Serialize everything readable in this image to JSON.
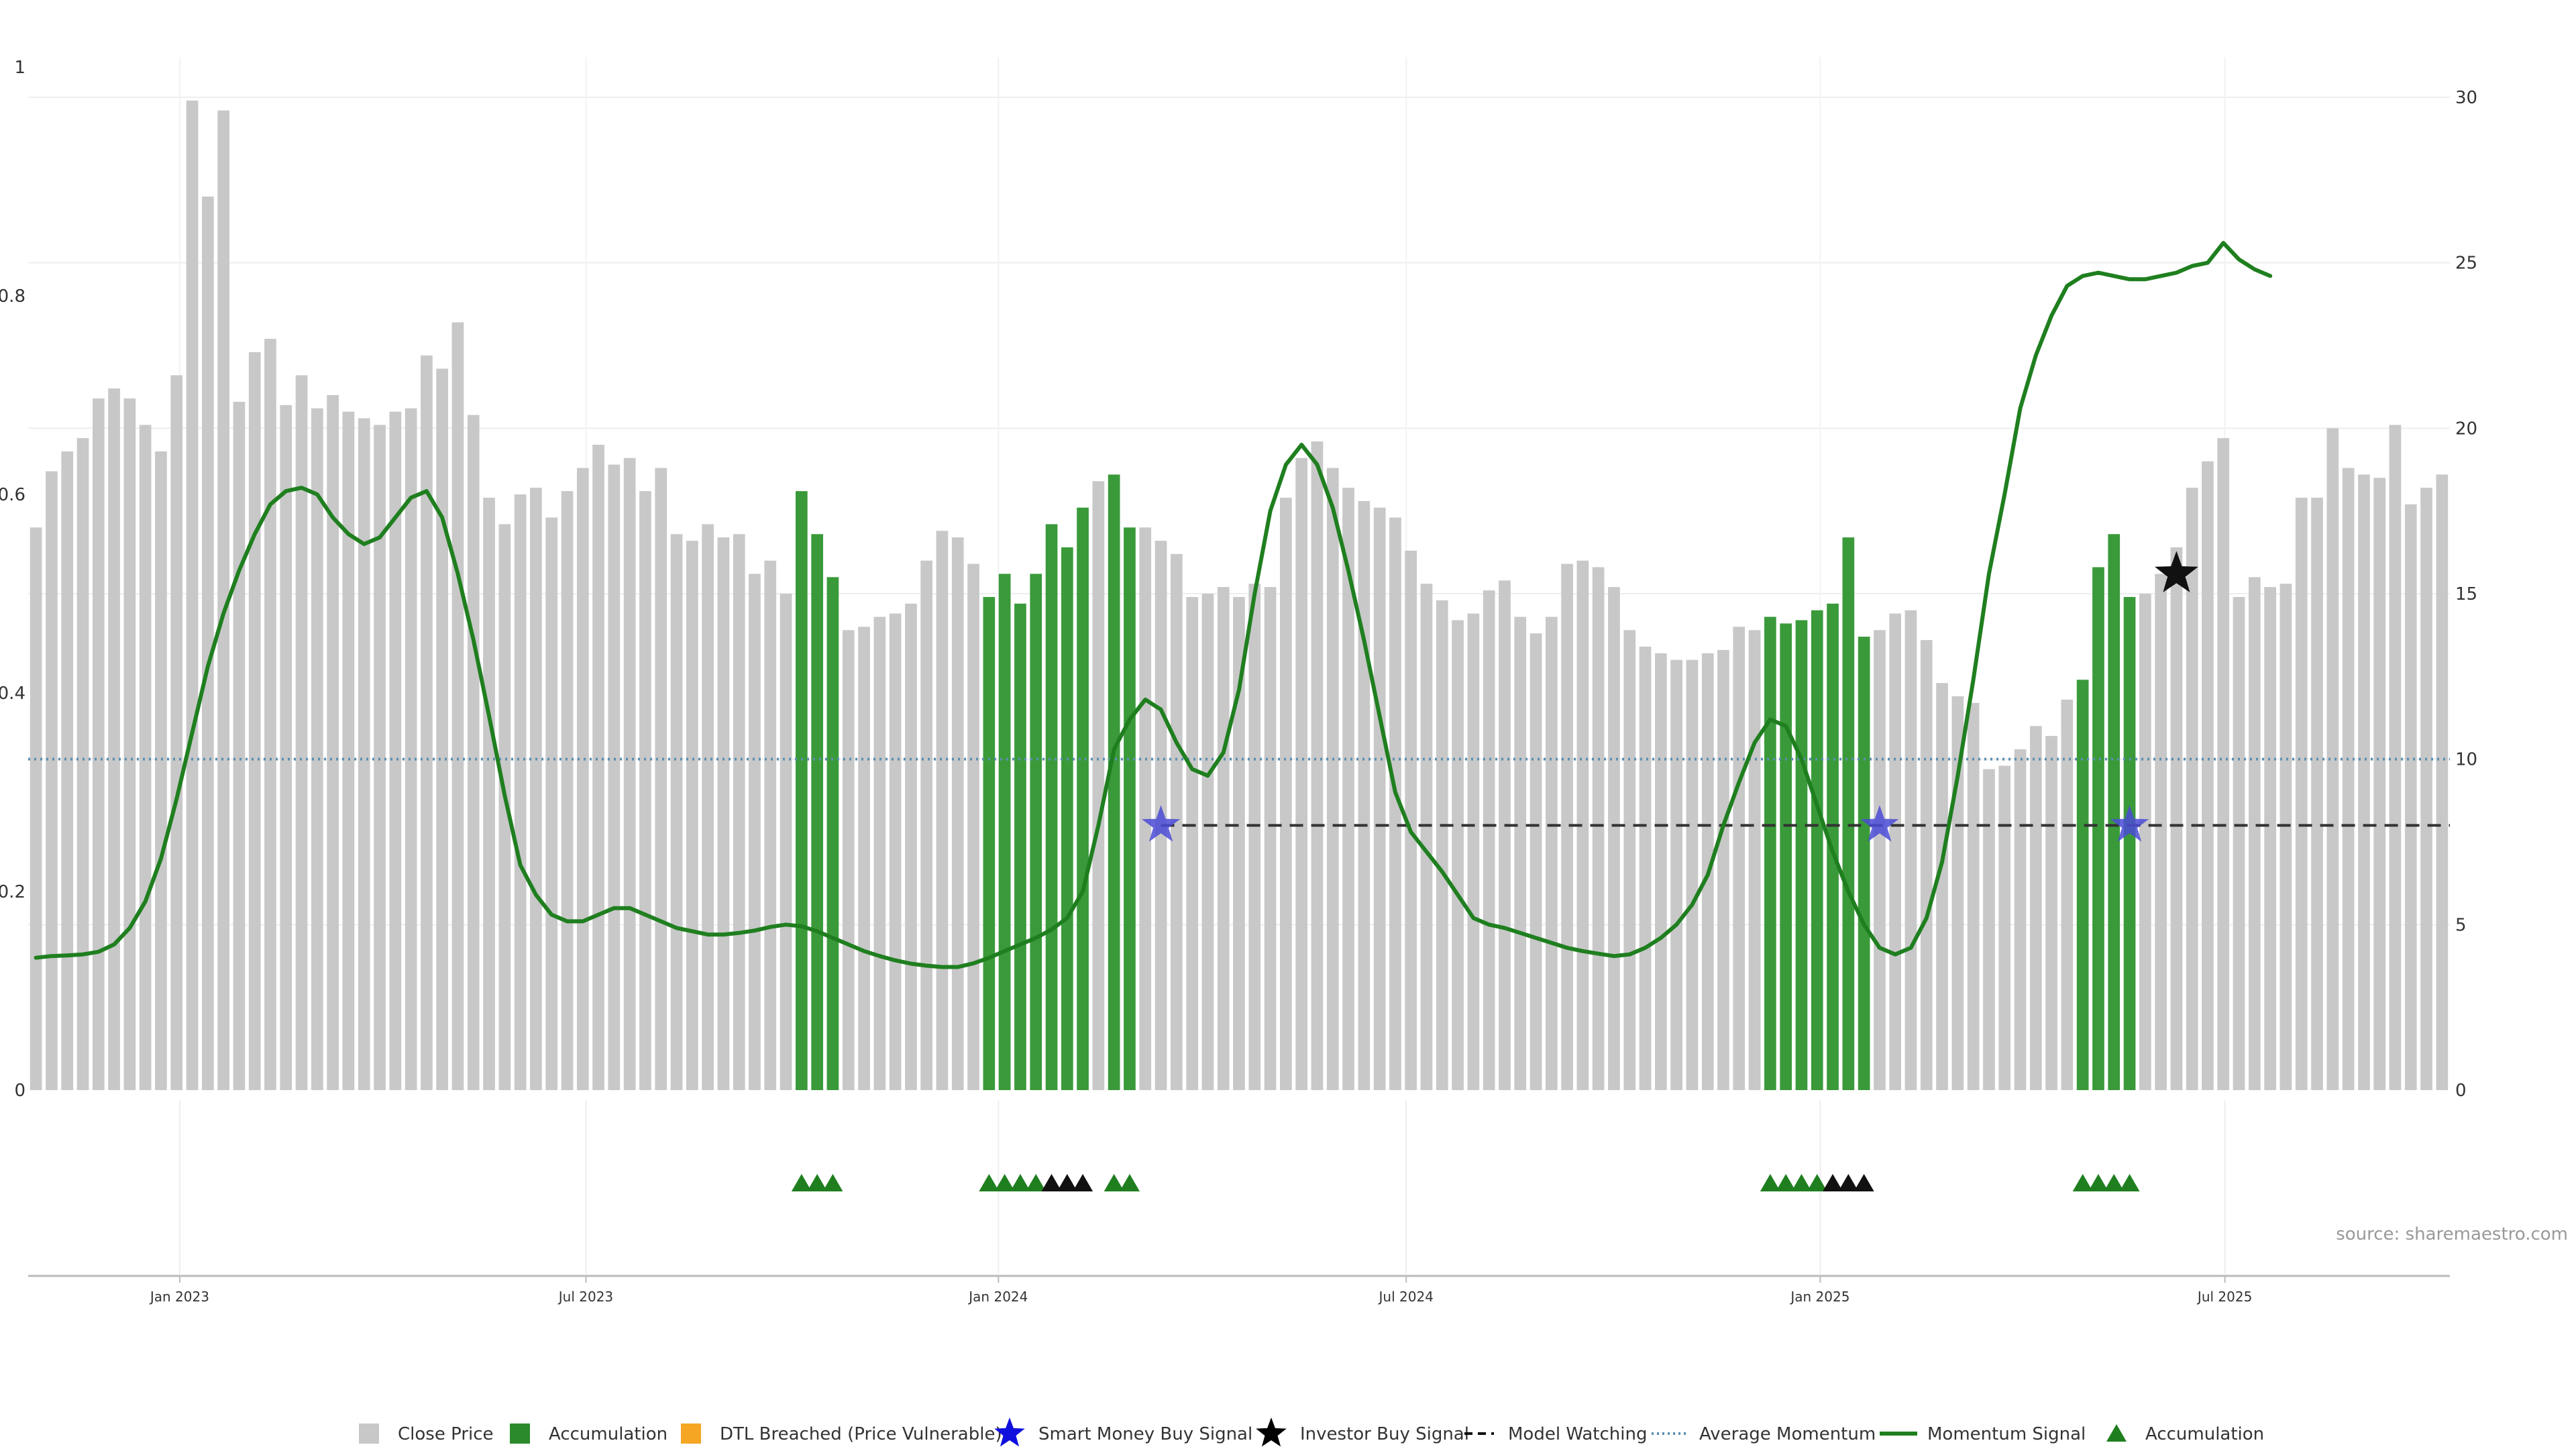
{
  "chart_data": {
    "type": "bar",
    "source": "source: sharemaestro.com",
    "x_ticks": [
      "Jan 2023",
      "Jul 2023",
      "Jan 2024",
      "Jul 2024",
      "Jan 2025",
      "Jul 2025"
    ],
    "y_left_ticks": [
      "0",
      "0.2",
      "0.4",
      "0.6",
      "0.8",
      "1"
    ],
    "y_right_ticks": [
      "0",
      "5",
      "10",
      "15",
      "20",
      "25",
      "30"
    ],
    "ylim_left": [
      0,
      1
    ],
    "ylim_right": [
      0,
      30
    ],
    "colors": {
      "close_price": "#c8c8c8",
      "accumulation": "#3a9a3a",
      "momentum": "#1f7f1f",
      "average_momentum": "#5b8fb0",
      "model_watching": "#333333",
      "smart_money_star": "#4b4bd6",
      "investor_star": "#111111"
    },
    "close_price": [
      17.0,
      18.7,
      19.3,
      19.7,
      20.9,
      21.2,
      20.9,
      20.1,
      19.3,
      21.6,
      29.9,
      27.0,
      29.6,
      20.8,
      22.3,
      22.7,
      20.7,
      21.6,
      20.6,
      21.0,
      20.5,
      20.3,
      20.1,
      20.5,
      20.6,
      22.2,
      21.8,
      23.2,
      20.4,
      17.9,
      17.1,
      18.0,
      18.2,
      17.3,
      18.1,
      18.8,
      19.5,
      18.9,
      19.1,
      18.1,
      18.8,
      16.8,
      16.6,
      17.1,
      16.7,
      16.8,
      15.6,
      16.0,
      15.0,
      18.1,
      16.8,
      15.5,
      13.9,
      14.0,
      14.3,
      14.4,
      14.7,
      16.0,
      16.9,
      16.7,
      15.9,
      14.9,
      15.6,
      14.7,
      15.6,
      17.1,
      16.4,
      17.6,
      18.4,
      18.6,
      17.0,
      17.0,
      16.6,
      16.2,
      14.9,
      15.0,
      15.2,
      14.9,
      15.3,
      15.2,
      17.9,
      19.1,
      19.6,
      18.8,
      18.2,
      17.8,
      17.6,
      17.3,
      16.3,
      15.3,
      14.8,
      14.2,
      14.4,
      15.1,
      15.4,
      14.3,
      13.8,
      14.3,
      15.9,
      16.0,
      15.8,
      15.2,
      13.9,
      13.4,
      13.2,
      13.0,
      13.0,
      13.2,
      13.3,
      14.0,
      13.9,
      14.3,
      14.1,
      14.2,
      14.5,
      14.7,
      16.7,
      13.7,
      13.9,
      14.4,
      14.5,
      13.6,
      12.3,
      11.9,
      11.7,
      9.7,
      9.8,
      10.3,
      11.0,
      10.7,
      11.8,
      12.4,
      15.8,
      16.8,
      14.9,
      15.0,
      15.6,
      16.4,
      18.2,
      19.0,
      19.7,
      14.9,
      15.5,
      15.2,
      15.3,
      17.9,
      17.9,
      20.0,
      18.8,
      18.6,
      18.5,
      20.1,
      17.7,
      18.2,
      18.6
    ],
    "accumulation_indices": [
      49,
      50,
      51,
      61,
      62,
      63,
      64,
      65,
      66,
      67,
      69,
      70,
      111,
      112,
      113,
      114,
      115,
      116,
      117,
      131,
      132,
      133,
      134
    ],
    "momentum": [
      4.0,
      4.05,
      4.07,
      4.1,
      4.18,
      4.4,
      4.9,
      5.7,
      7.0,
      8.8,
      10.8,
      12.8,
      14.4,
      15.7,
      16.8,
      17.7,
      18.1,
      18.2,
      18.0,
      17.3,
      16.8,
      16.5,
      16.7,
      17.3,
      17.9,
      18.1,
      17.3,
      15.6,
      13.6,
      11.3,
      8.9,
      6.8,
      5.9,
      5.3,
      5.1,
      5.1,
      5.3,
      5.5,
      5.5,
      5.3,
      5.1,
      4.9,
      4.8,
      4.7,
      4.7,
      4.75,
      4.82,
      4.93,
      5.0,
      4.95,
      4.8,
      4.6,
      4.4,
      4.2,
      4.05,
      3.92,
      3.82,
      3.76,
      3.72,
      3.72,
      3.83,
      4.0,
      4.2,
      4.4,
      4.6,
      4.85,
      5.2,
      6.0,
      8.0,
      10.3,
      11.2,
      11.8,
      11.5,
      10.5,
      9.7,
      9.5,
      10.2,
      12.1,
      15.0,
      17.5,
      18.9,
      19.5,
      18.9,
      17.6,
      15.7,
      13.6,
      11.3,
      9.0,
      7.8,
      7.2,
      6.6,
      5.9,
      5.2,
      5.0,
      4.9,
      4.75,
      4.6,
      4.45,
      4.3,
      4.2,
      4.12,
      4.05,
      4.1,
      4.3,
      4.6,
      5.0,
      5.6,
      6.5,
      8.0,
      9.3,
      10.5,
      11.2,
      11.0,
      10.0,
      8.6,
      7.2,
      6.0,
      5.0,
      4.3,
      4.1,
      4.3,
      5.2,
      6.9,
      9.5,
      12.4,
      15.6,
      18.0,
      20.6,
      22.2,
      23.4,
      24.3,
      24.6,
      24.7,
      24.6,
      24.5,
      24.5,
      24.6,
      24.7,
      24.9,
      25.0,
      25.6,
      25.1,
      24.8,
      24.6
    ],
    "average_momentum": 10.0,
    "model_watching": {
      "start_index": 72,
      "level": 8.0
    },
    "smart_money_buy_signals": [
      {
        "index": 72,
        "value": 8.0
      },
      {
        "index": 118,
        "value": 8.0
      },
      {
        "index": 134,
        "value": 8.0
      }
    ],
    "investor_buy_signals": [
      {
        "index": 137,
        "value": 15.6
      }
    ],
    "accumulation_markers": [
      {
        "index": 49,
        "color": "green"
      },
      {
        "index": 50,
        "color": "green"
      },
      {
        "index": 51,
        "color": "green"
      },
      {
        "index": 61,
        "color": "green"
      },
      {
        "index": 62,
        "color": "green"
      },
      {
        "index": 63,
        "color": "green"
      },
      {
        "index": 64,
        "color": "green"
      },
      {
        "index": 65,
        "color": "black"
      },
      {
        "index": 66,
        "color": "black"
      },
      {
        "index": 67,
        "color": "black"
      },
      {
        "index": 69,
        "color": "green"
      },
      {
        "index": 70,
        "color": "green"
      },
      {
        "index": 111,
        "color": "green"
      },
      {
        "index": 112,
        "color": "green"
      },
      {
        "index": 113,
        "color": "green"
      },
      {
        "index": 114,
        "color": "green"
      },
      {
        "index": 115,
        "color": "black"
      },
      {
        "index": 116,
        "color": "black"
      },
      {
        "index": 117,
        "color": "black"
      },
      {
        "index": 131,
        "color": "green"
      },
      {
        "index": 132,
        "color": "green"
      },
      {
        "index": 133,
        "color": "green"
      },
      {
        "index": 134,
        "color": "green"
      }
    ],
    "legend": [
      {
        "key": "close_price",
        "label": "Close Price",
        "symbol": "square-gray"
      },
      {
        "key": "accumulation",
        "label": "Accumulation",
        "symbol": "square-green"
      },
      {
        "key": "dtl",
        "label": "DTL Breached (Price Vulnerable)",
        "symbol": "square-orange"
      },
      {
        "key": "smart_money",
        "label": "Smart Money Buy Signal",
        "symbol": "star-blue"
      },
      {
        "key": "investor",
        "label": "Investor Buy Signal",
        "symbol": "star-black"
      },
      {
        "key": "model_watching",
        "label": "Model Watching",
        "symbol": "dash-black"
      },
      {
        "key": "average_momentum",
        "label": "Average Momentum",
        "symbol": "dot-blue"
      },
      {
        "key": "momentum_signal",
        "label": "Momentum Signal",
        "symbol": "line-green"
      },
      {
        "key": "accumulation_marker",
        "label": "Accumulation",
        "symbol": "triangle-green"
      }
    ]
  }
}
